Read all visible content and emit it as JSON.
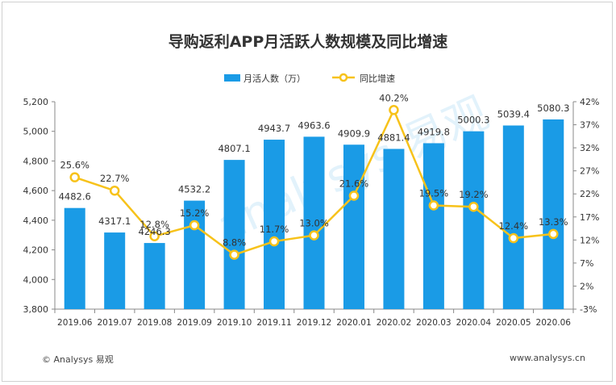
{
  "chart_data": {
    "type": "bar+line",
    "title": "导购返利APP月活跃人数规模及同比增速",
    "categories": [
      "2019.06",
      "2019.07",
      "2019.08",
      "2019.09",
      "2019.10",
      "2019.11",
      "2019.12",
      "2020.01",
      "2020.02",
      "2020.03",
      "2020.04",
      "2020.05",
      "2020.06"
    ],
    "series": [
      {
        "name": "月活人数（万）",
        "type": "bar",
        "axis": "left",
        "color": "#1a9be6",
        "values": [
          4482.6,
          4317.1,
          4246.3,
          4532.2,
          4807.1,
          4943.7,
          4963.6,
          4909.9,
          4881.4,
          4919.8,
          5000.3,
          5039.4,
          5080.3
        ],
        "labels": [
          "4482.6",
          "4317.1",
          "4246.3",
          "4532.2",
          "4807.1",
          "4943.7",
          "4963.6",
          "4909.9",
          "4881.4",
          "4919.8",
          "5000.3",
          "5039.4",
          "5080.3"
        ]
      },
      {
        "name": "同比增速",
        "type": "line",
        "axis": "right",
        "color": "#f7c21a",
        "values": [
          25.6,
          22.7,
          12.8,
          15.2,
          8.8,
          11.7,
          13.0,
          21.6,
          40.2,
          19.5,
          19.2,
          12.4,
          13.3
        ],
        "labels": [
          "25.6%",
          "22.7%",
          "12.8%",
          "15.2%",
          "8.8%",
          "11.7%",
          "13.0%",
          "21.6%",
          "40.2%",
          "19.5%",
          "19.2%",
          "12.4%",
          "13.3%"
        ]
      }
    ],
    "y_left": {
      "min": 3800,
      "max": 5200,
      "ticks": [
        "3,800",
        "4,000",
        "4,200",
        "4,400",
        "4,600",
        "4,800",
        "5,000",
        "5,200"
      ]
    },
    "y_right": {
      "min": -3,
      "max": 42,
      "ticks": [
        "-3%",
        "2%",
        "7%",
        "12%",
        "17%",
        "22%",
        "27%",
        "32%",
        "37%",
        "42%"
      ]
    },
    "legend_position": "top-center",
    "grid": false
  },
  "watermark": "analysys 易观",
  "footer": {
    "copyright": "© Analysys 易观",
    "url": "www.analysys.cn"
  }
}
